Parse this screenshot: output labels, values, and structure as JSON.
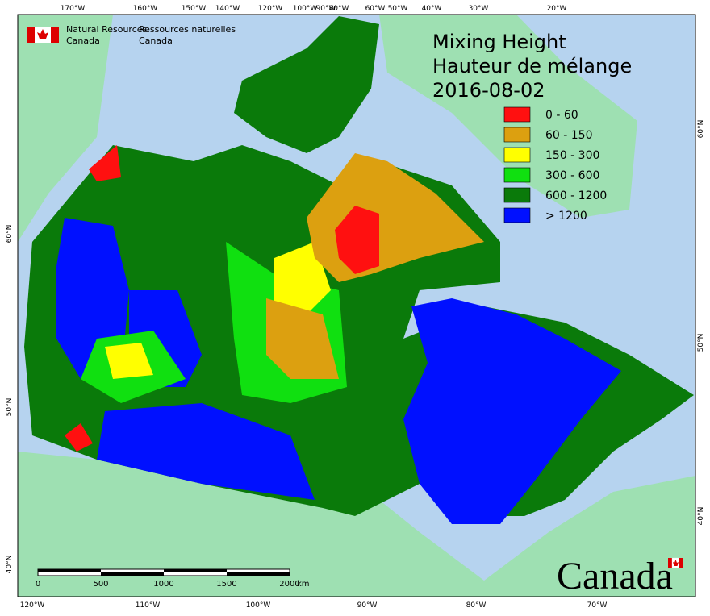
{
  "header": {
    "agency_en": [
      "Natural Resources",
      "Canada"
    ],
    "agency_fr": [
      "Ressources naturelles",
      "Canada"
    ]
  },
  "title": [
    "Mixing Height",
    "Hauteur de mélange",
    "2016-08-02"
  ],
  "legend": [
    {
      "label": "0 - 60",
      "color": "#ff1010"
    },
    {
      "label": "60 - 150",
      "color": "#dca010"
    },
    {
      "label": "150 - 300",
      "color": "#ffff00"
    },
    {
      "label": "300 - 600",
      "color": "#10e010"
    },
    {
      "label": "600 - 1200",
      "color": "#0a7a0a"
    },
    {
      "label": "> 1200",
      "color": "#0010ff"
    }
  ],
  "graticule": {
    "top": [
      "170°W",
      "160°W",
      "150°W",
      "140°W",
      "120°W",
      "100°W",
      "90°W",
      "80°W",
      "60°W",
      "50°W",
      "40°W",
      "30°W",
      "20°W"
    ],
    "bottom": [
      "120°W",
      "110°W",
      "100°W",
      "90°W",
      "80°W",
      "70°W"
    ],
    "left": [
      "60°N",
      "50°N",
      "40°N"
    ],
    "right": [
      "60°N",
      "50°N",
      "40°N"
    ]
  },
  "scale": {
    "labels": [
      "0",
      "500",
      "1000",
      "1500",
      "2000"
    ],
    "unit": "km"
  },
  "wordmark": "Canada"
}
